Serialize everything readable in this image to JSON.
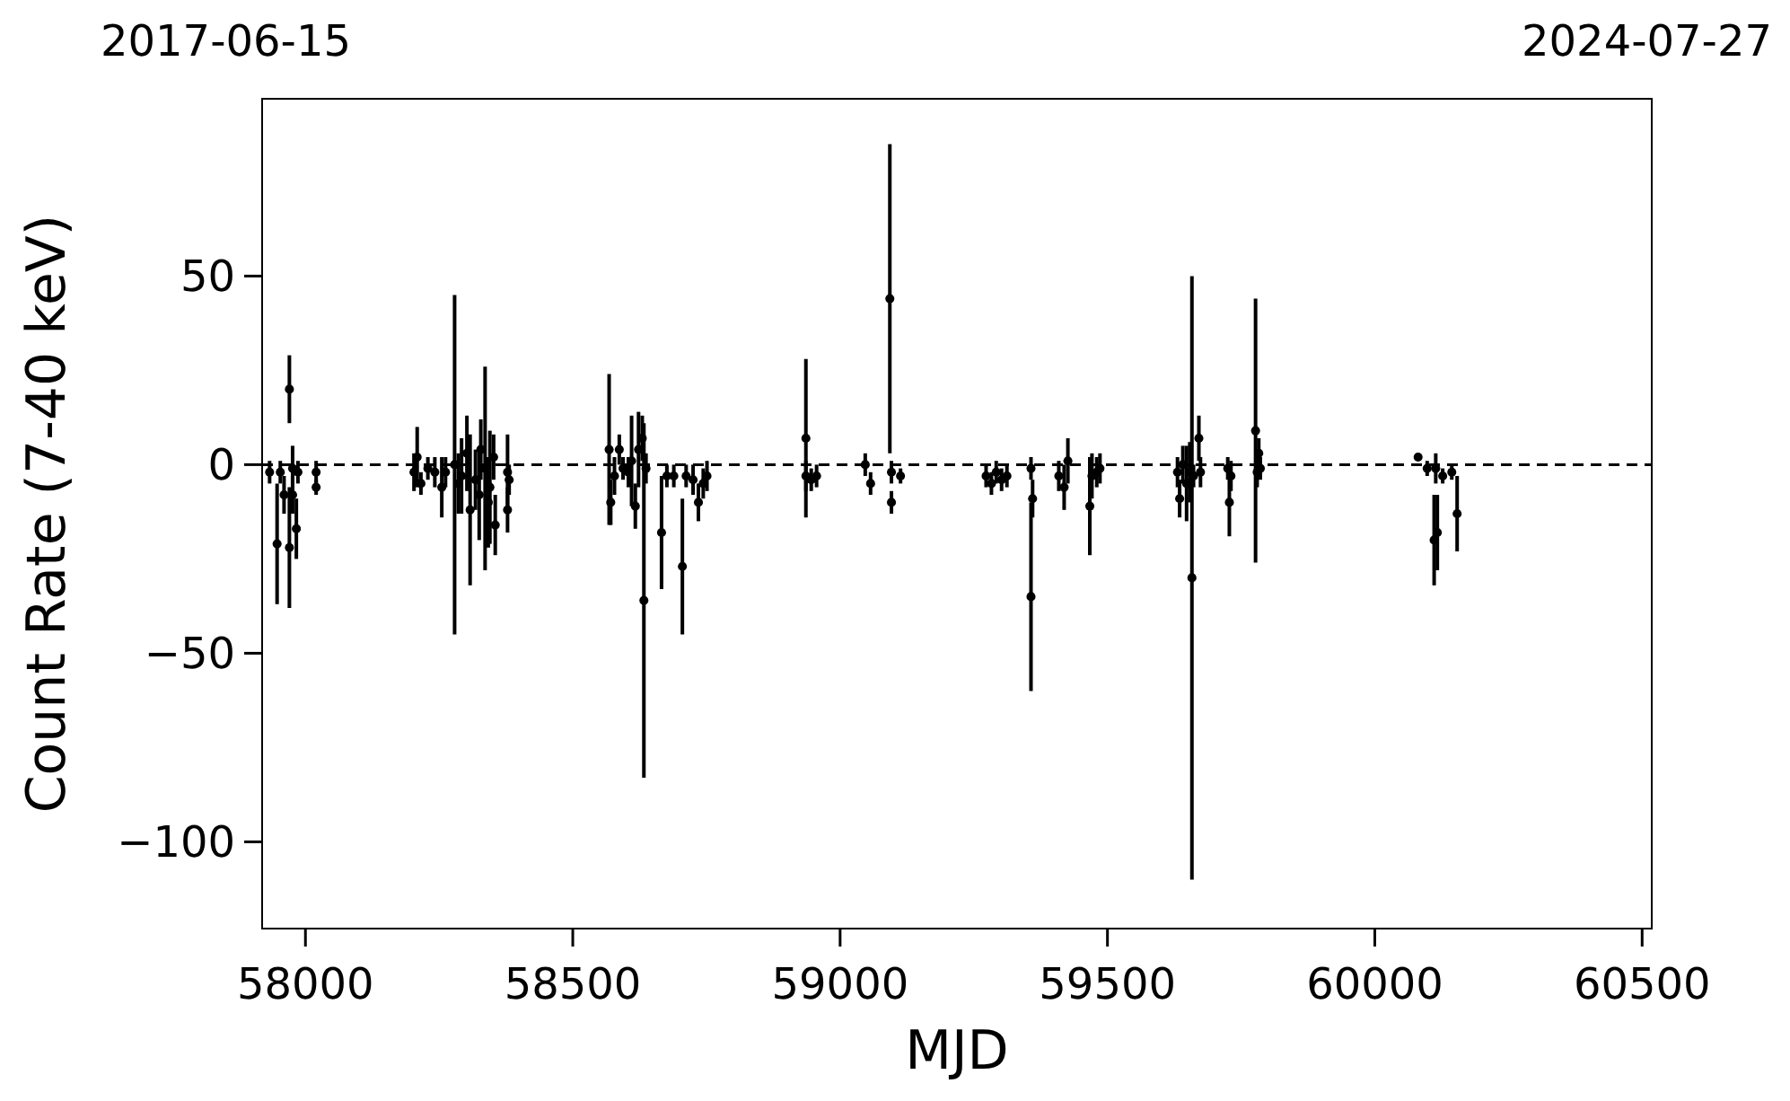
{
  "chart_data": {
    "type": "scatter",
    "xlabel": "MJD",
    "ylabel": "Count Rate (7-40 keV)",
    "annotations": [
      "2017-06-15",
      "2024-07-27"
    ],
    "xlim": [
      57919,
      60518
    ],
    "ylim": [
      -123,
      97
    ],
    "xticks": [
      58000,
      58500,
      59000,
      59500,
      60000,
      60500
    ],
    "yticks": [
      {
        "value": -100,
        "label": "−100"
      },
      {
        "value": -50,
        "label": "−50"
      },
      0,
      50
    ],
    "marker": "circle",
    "grid": false,
    "ref_lines": [
      {
        "axis": "y",
        "value": 0,
        "color": "#000000",
        "line_style": "dashed"
      }
    ],
    "series": [
      {
        "color": "#000000",
        "x": [
          57933,
          57947,
          57953,
          57960,
          57970,
          57970,
          57976,
          57976,
          57983,
          57986,
          58020,
          58020,
          58203,
          58209,
          58216,
          58229,
          58242,
          58255,
          58262,
          58279,
          58286,
          58292,
          58302,
          58308,
          58318,
          58325,
          58328,
          58336,
          58342,
          58345,
          58352,
          58355,
          58378,
          58378,
          58381,
          58568,
          58571,
          58578,
          58587,
          58594,
          58604,
          58610,
          58617,
          58623,
          58630,
          58633,
          58637,
          58666,
          58676,
          58689,
          58705,
          58712,
          58725,
          58735,
          58744,
          58751,
          58936,
          58936,
          58946,
          58956,
          59047,
          59057,
          59093,
          59096,
          59096,
          59113,
          59273,
          59283,
          59292,
          59302,
          59312,
          59357,
          59357,
          59360,
          59409,
          59419,
          59426,
          59467,
          59471,
          59480,
          59486,
          59631,
          59635,
          59641,
          59648,
          59654,
          59658,
          59661,
          59671,
          59674,
          59725,
          59728,
          59731,
          59777,
          59780,
          59783,
          59786,
          60081,
          60098,
          60111,
          60114,
          60117,
          60127,
          60144,
          60154
        ],
        "values": [
          -2,
          -21,
          -2,
          -8,
          20,
          -22,
          -1,
          -8,
          -17,
          -2,
          -2,
          -6,
          -2,
          2,
          -5,
          -1,
          -2,
          -6,
          -2,
          0,
          -5,
          -3,
          3,
          -12,
          -4,
          -8,
          4,
          -1,
          -10,
          -6,
          2,
          -16,
          -2,
          -12,
          -4,
          4,
          -10,
          -3,
          4,
          -1,
          -2,
          1,
          -11,
          4,
          7,
          -36,
          -1,
          -18,
          -3,
          -3,
          -27,
          -3,
          -4,
          -10,
          -5,
          -3,
          7,
          -3,
          -4,
          -3,
          0,
          -5,
          44,
          -2,
          -10,
          -3,
          -3,
          -5,
          -2,
          -4,
          -3,
          -35,
          -1,
          -9,
          -3,
          -6,
          1,
          -11,
          -3,
          -2,
          -1,
          -2,
          -9,
          0,
          -5,
          -2,
          -30,
          -3,
          7,
          -2,
          -1,
          -10,
          -3,
          9,
          -2,
          3,
          -1,
          2,
          -1,
          -20,
          -1,
          -18,
          -3,
          -2,
          -13
        ],
        "errors": [
          3,
          16,
          3,
          5,
          9,
          16,
          6,
          5,
          8,
          3,
          3,
          2,
          5,
          8,
          3,
          3,
          4,
          8,
          4,
          45,
          8,
          10,
          10,
          20,
          8,
          12,
          8,
          27,
          12,
          15,
          6,
          8,
          10,
          6,
          4,
          20,
          6,
          5,
          4,
          3,
          4,
          12,
          6,
          10,
          6,
          47,
          4,
          15,
          3,
          3,
          18,
          3,
          4,
          5,
          4,
          4,
          21,
          4,
          3,
          3,
          3,
          3,
          41,
          3,
          3,
          2,
          3,
          3,
          3,
          3,
          3,
          25,
          3,
          5,
          4,
          6,
          6,
          13,
          6,
          4,
          4,
          4,
          5,
          5,
          10,
          8,
          80,
          3,
          6,
          4,
          3,
          9,
          4,
          35,
          4,
          4,
          3,
          1,
          2,
          12,
          4,
          10,
          2,
          2,
          10
        ]
      }
    ]
  }
}
